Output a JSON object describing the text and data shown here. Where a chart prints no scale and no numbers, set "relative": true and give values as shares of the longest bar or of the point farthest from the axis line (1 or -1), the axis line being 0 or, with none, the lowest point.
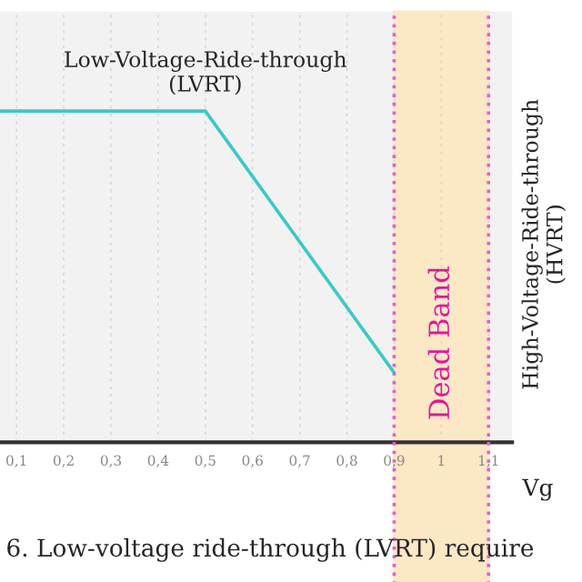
{
  "chart_data": {
    "type": "line",
    "relative": true,
    "xlabel": "Vg",
    "x": [
      0.065,
      0.5,
      0.9
    ],
    "series": [
      {
        "color": "#3cc8c8",
        "values": [
          1,
          1,
          0.21
        ]
      }
    ],
    "xlim": [
      0.065,
      1.15
    ],
    "xticks": [
      {
        "value": 0.1,
        "label": "0,1"
      },
      {
        "value": 0.2,
        "label": "0,2"
      },
      {
        "value": 0.3,
        "label": "0,3"
      },
      {
        "value": 0.4,
        "label": "0,4"
      },
      {
        "value": 0.5,
        "label": "0,5"
      },
      {
        "value": 0.6,
        "label": "0,6"
      },
      {
        "value": 0.7,
        "label": "0,7"
      },
      {
        "value": 0.8,
        "label": "0,8"
      },
      {
        "value": 0.9,
        "label": "0,9"
      },
      {
        "value": 1.0,
        "label": "1"
      },
      {
        "value": 1.1,
        "label": "1,1"
      }
    ],
    "grid": "x",
    "bands": [
      {
        "axis": "x",
        "from": 0.9,
        "to": 1.1,
        "label": "Dead Band",
        "color": "#fde8c6"
      }
    ],
    "annotations": [
      {
        "text": "Low-Voltage-Ride-through\n(LVRT)",
        "x": 0.5,
        "y": 1
      },
      "High-Voltage-Ride-through\n(HVRT)",
      "6. Low-voltage ride-through (LVRT) require"
    ]
  }
}
